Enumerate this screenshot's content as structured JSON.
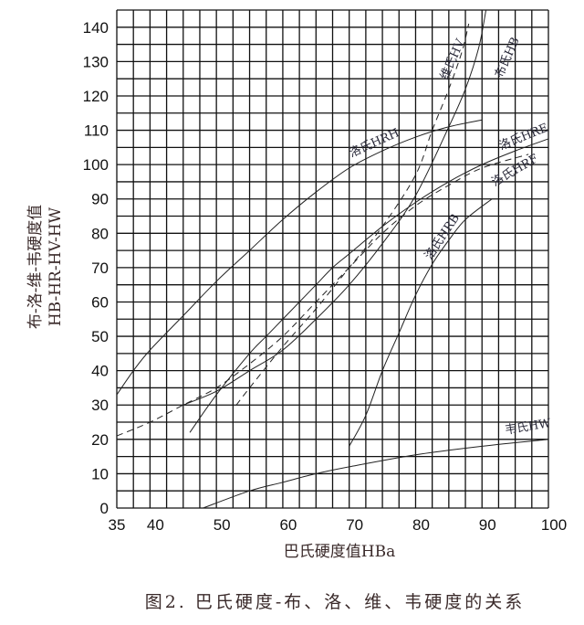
{
  "chart_data": {
    "type": "line",
    "title": "",
    "caption": "图2. 巴氏硬度-布、洛、维、韦硬度的关系",
    "xlabel": "巴氏硬度值HBa",
    "ylabel_line1": "布-洛-维-韦硬度值",
    "ylabel_line2": "HB-HR-HV-HW",
    "xlim": [
      35,
      100
    ],
    "ylim": [
      0,
      145
    ],
    "xticks": [
      35,
      40,
      50,
      60,
      70,
      80,
      90,
      100
    ],
    "yticks": [
      0,
      10,
      20,
      30,
      40,
      50,
      60,
      70,
      80,
      90,
      100,
      110,
      120,
      130,
      140
    ],
    "grid": true,
    "grid_x_step": 2.5,
    "grid_y_step": 5,
    "line_color": "#222222",
    "series": [
      {
        "name": "洛氏HRH",
        "style": "solid",
        "x": [
          35,
          37.5,
          40,
          45,
          50,
          55,
          60,
          65,
          70,
          75,
          80,
          85,
          90
        ],
        "y": [
          33,
          40,
          46,
          56,
          66,
          75,
          84,
          92,
          99,
          104,
          108,
          111,
          113
        ]
      },
      {
        "name": "布氏HB",
        "style": "solid",
        "x": [
          45,
          50,
          55,
          60,
          65,
          70,
          75,
          80,
          85,
          87.5,
          89.5,
          90.6
        ],
        "y": [
          30,
          34,
          40,
          46,
          55,
          65,
          77,
          91,
          111,
          122,
          134,
          145
        ]
      },
      {
        "name": "维氏HV",
        "style": "dashed",
        "x": [
          53,
          55,
          60,
          65,
          70,
          75,
          80,
          82.5,
          85,
          87,
          88
        ],
        "y": [
          30,
          35,
          47,
          58,
          70,
          82,
          97,
          110,
          122,
          133,
          141
        ]
      },
      {
        "name": "洛氏HRE",
        "style": "solid",
        "x": [
          46,
          50,
          55,
          57.5,
          60,
          62.5,
          65,
          67.5,
          70,
          75,
          80,
          85,
          90,
          95,
          100
        ],
        "y": [
          22,
          33,
          45,
          50,
          55,
          60,
          65,
          70,
          74,
          82,
          89,
          95,
          100,
          104,
          107.5
        ]
      },
      {
        "name": "洛氏HRF",
        "style": "dashed",
        "x": [
          35,
          40,
          45,
          50,
          55,
          60,
          65,
          70,
          75,
          80,
          85,
          90,
          97
        ],
        "y": [
          21,
          25,
          30,
          35,
          42,
          50,
          60,
          70,
          80,
          88,
          94,
          99,
          103
        ]
      },
      {
        "name": "洛氏HRB",
        "style": "solid",
        "x": [
          70,
          72.5,
          75,
          77.5,
          80,
          82.5,
          85,
          87.5,
          91.5
        ],
        "y": [
          18,
          27,
          40,
          51,
          62,
          71,
          78,
          84,
          90
        ]
      },
      {
        "name": "韦氏HW",
        "style": "solid",
        "x": [
          48,
          55,
          60,
          65,
          70,
          80,
          90,
          100
        ],
        "y": [
          0,
          5,
          7.5,
          10,
          12,
          15.5,
          18,
          20
        ]
      }
    ]
  }
}
